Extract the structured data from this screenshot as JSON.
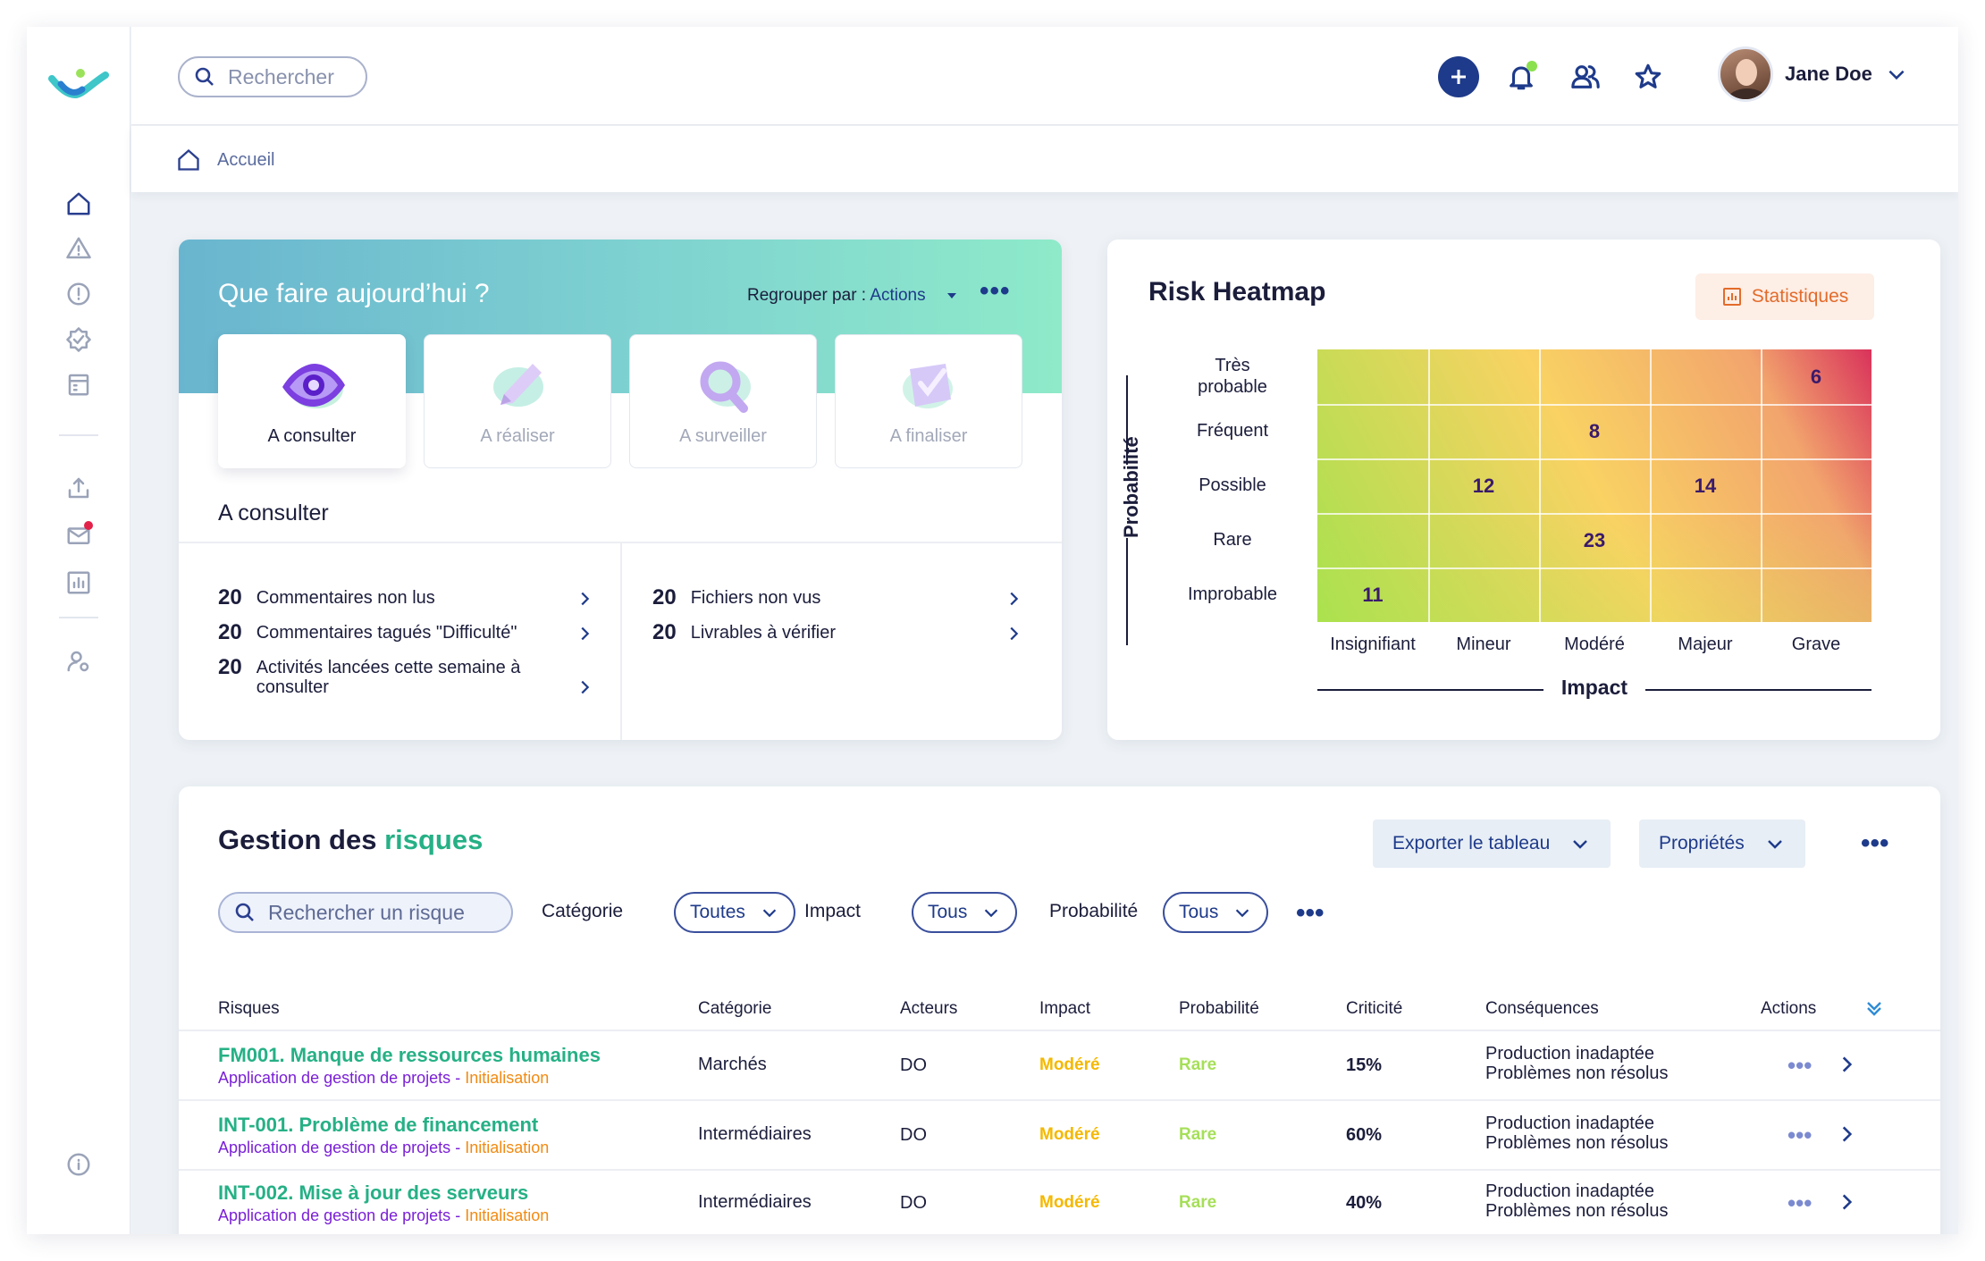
{
  "topbar": {
    "search_placeholder": "Rechercher",
    "user_name": "Jane Doe"
  },
  "sidebar": {
    "items": [
      {
        "icon": "home-icon",
        "active": true
      },
      {
        "icon": "warning-icon"
      },
      {
        "icon": "alert-circle-icon"
      },
      {
        "icon": "check-badge-icon"
      },
      {
        "icon": "calendar-icon"
      },
      {
        "icon": "upload-icon"
      },
      {
        "icon": "mail-icon"
      },
      {
        "icon": "chart-icon"
      },
      {
        "icon": "user-settings-icon"
      },
      {
        "icon": "info-icon"
      }
    ]
  },
  "breadcrumb": {
    "home": "Accueil"
  },
  "todo": {
    "title": "Que faire aujourd’hui ?",
    "group_by_label": "Regrouper par :",
    "group_by_value": "Actions",
    "tiles": [
      {
        "label": "A consulter",
        "active": true
      },
      {
        "label": "A réaliser"
      },
      {
        "label": "A surveiller"
      },
      {
        "label": "A finaliser"
      }
    ],
    "section_title": "A consulter",
    "left_items": [
      {
        "count": "20",
        "label": "Commentaires non lus"
      },
      {
        "count": "20",
        "label": "Commentaires tagués \"Difficulté\""
      },
      {
        "count": "20",
        "label": "Activités lancées cette semaine à consulter"
      }
    ],
    "right_items": [
      {
        "count": "20",
        "label": "Fichiers non vus"
      },
      {
        "count": "20",
        "label": "Livrables à vérifier"
      }
    ]
  },
  "heatmap": {
    "title": "Risk Heatmap",
    "stats_button": "Statistiques",
    "y_axis_title": "Probabilité",
    "x_axis_title": "Impact",
    "y_labels": [
      "Très probable",
      "Fréquent",
      "Possible",
      "Rare",
      "Improbable"
    ],
    "x_labels": [
      "Insignifiant",
      "Mineur",
      "Modéré",
      "Majeur",
      "Grave"
    ],
    "gradient": [
      "#a7e14e",
      "#f9d263",
      "#f2a56d",
      "#d9325b"
    ],
    "cells": [
      {
        "row": 0,
        "col": 4,
        "value": "6"
      },
      {
        "row": 1,
        "col": 2,
        "value": "8"
      },
      {
        "row": 2,
        "col": 1,
        "value": "12"
      },
      {
        "row": 2,
        "col": 3,
        "value": "14"
      },
      {
        "row": 3,
        "col": 2,
        "value": "23"
      },
      {
        "row": 4,
        "col": 0,
        "value": "11"
      }
    ]
  },
  "risks": {
    "title_main": "Gestion des",
    "title_accent": "risques",
    "export_button": "Exporter le tableau",
    "properties_button": "Propriétés",
    "search_placeholder": "Rechercher un risque",
    "filters": {
      "category_label": "Catégorie",
      "category_value": "Toutes",
      "impact_label": "Impact",
      "impact_value": "Tous",
      "probability_label": "Probabilité",
      "probability_value": "Tous"
    },
    "columns": [
      "Risques",
      "Catégorie",
      "Acteurs",
      "Impact",
      "Probabilité",
      "Criticité",
      "Conséquences",
      "Actions"
    ],
    "rows": [
      {
        "title": "FM001. Manque de ressources humaines",
        "project": "Application de gestion de projets",
        "sep": " - ",
        "stage": "Initialisation",
        "category": "Marchés",
        "actors": "DO",
        "impact": "Modéré",
        "probability": "Rare",
        "criticity": "15%",
        "cons1": "Production inadaptée",
        "cons2": "Problèmes non résolus"
      },
      {
        "title": "INT-001. Problème de financement",
        "project": "Application de gestion de projets",
        "sep": " - ",
        "stage": "Initialisation",
        "category": "Intermédiaires",
        "actors": "DO",
        "impact": "Modéré",
        "probability": "Rare",
        "criticity": "60%",
        "cons1": "Production inadaptée",
        "cons2": "Problèmes non résolus"
      },
      {
        "title": "INT-002. Mise à jour des serveurs",
        "project": "Application de gestion de projets",
        "sep": " - ",
        "stage": "Initialisation",
        "category": "Intermédiaires",
        "actors": "DO",
        "impact": "Modéré",
        "probability": "Rare",
        "criticity": "40%",
        "cons1": "Production inadaptée",
        "cons2": "Problèmes non résolus"
      }
    ]
  }
}
